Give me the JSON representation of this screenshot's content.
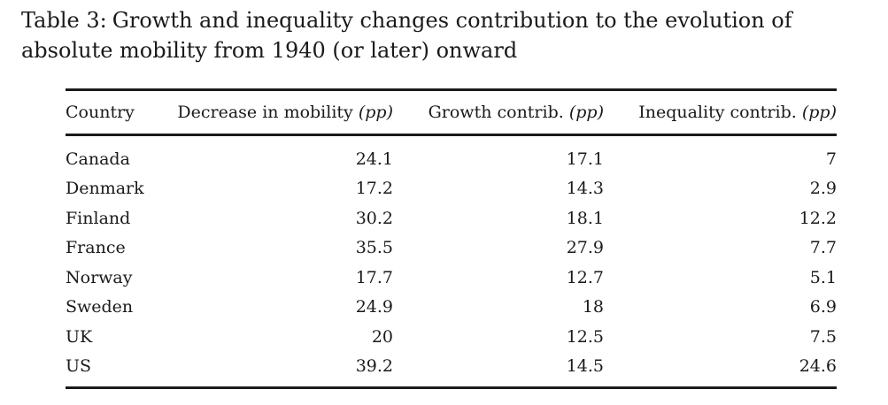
{
  "caption": {
    "label": "Table 3:",
    "text": "Growth and inequality changes contribution to the evolution of absolute mobility from 1940 (or later) onward"
  },
  "table": {
    "headers": [
      {
        "text": "Country",
        "unit": ""
      },
      {
        "text": "Decrease in mobility",
        "unit": "(pp)"
      },
      {
        "text": "Growth contrib.",
        "unit": "(pp)"
      },
      {
        "text": "Inequality contrib.",
        "unit": "(pp)"
      }
    ],
    "rows": [
      [
        "Canada",
        "24.1",
        "17.1",
        "7"
      ],
      [
        "Denmark",
        "17.2",
        "14.3",
        "2.9"
      ],
      [
        "Finland",
        "30.2",
        "18.1",
        "12.2"
      ],
      [
        "France",
        "35.5",
        "27.9",
        "7.7"
      ],
      [
        "Norway",
        "17.7",
        "12.7",
        "5.1"
      ],
      [
        "Sweden",
        "24.9",
        "18",
        "6.9"
      ],
      [
        "UK",
        "20",
        "12.5",
        "7.5"
      ],
      [
        "US",
        "39.2",
        "14.5",
        "24.6"
      ]
    ]
  }
}
